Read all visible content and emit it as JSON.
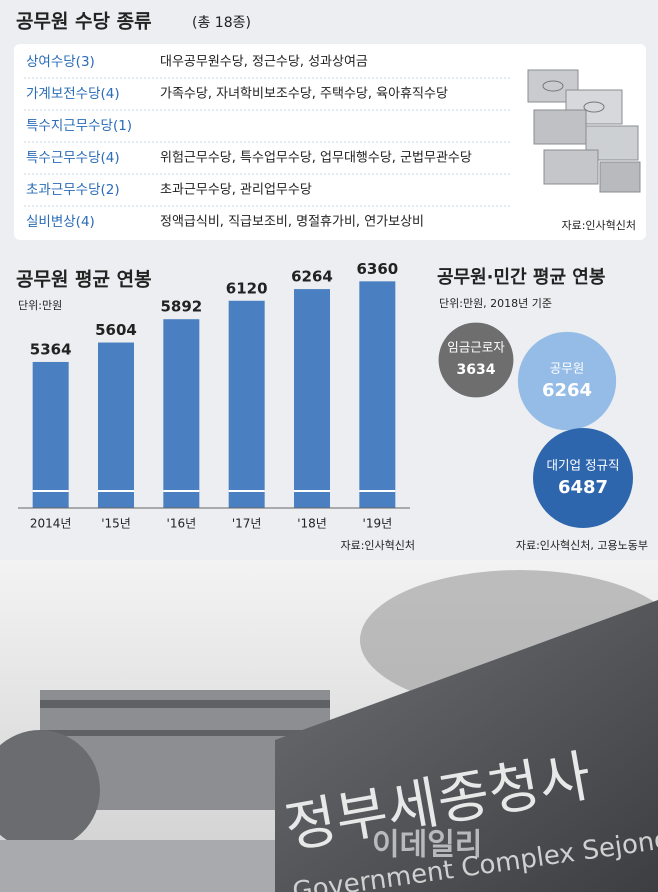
{
  "table": {
    "title": "공무원 수당 종류",
    "subtitle": "(총 18종)",
    "rows": [
      {
        "name": "상여수당(3)",
        "items": "대우공무원수당, 정근수당, 성과상여금"
      },
      {
        "name": "가계보전수당(4)",
        "items": "가족수당, 자녀학비보조수당, 주택수당, 육아휴직수당"
      },
      {
        "name": "특수지근무수당(1)"
      },
      {
        "name": "특수근무수당(4)",
        "items": "위험근무수당, 특수업무수당, 업무대행수당, 군법무관수당"
      },
      {
        "name": "초과근무수당(2)",
        "items": "초과근무수당, 관리업무수당"
      },
      {
        "name": "실비변상(4)",
        "items": "정액급식비, 직급보조비, 명절휴가비, 연가보상비"
      }
    ],
    "source": "자료:인사혁신처"
  },
  "chart_data": [
    {
      "type": "bar",
      "title": "공무원 평균 연봉",
      "subtitle": "단위:만원",
      "categories": [
        "2014년",
        "'15년",
        "'16년",
        "'17년",
        "'18년",
        "'19년"
      ],
      "values": [
        5364,
        5604,
        5892,
        6120,
        6264,
        6360
      ],
      "color": "#4a7fc1",
      "ylim": [
        3560,
        6500
      ],
      "source": "자료:인사혁신처"
    },
    {
      "type": "bubble",
      "title": "공무원·민간 평균 연봉",
      "subtitle": "단위:만원, 2018년 기준",
      "categories": [
        "임금근로자",
        "공무원",
        "대기업 정규직"
      ],
      "values": [
        3634,
        6264,
        6487
      ],
      "colors": [
        "#6e6e6e",
        "#8fb8e6",
        "#2e66ae"
      ],
      "source": "자료:인사혁신처, 고용노동부"
    }
  ],
  "photo": {
    "sign": "정부세종청사",
    "sign_english": "Government Complex Sejong",
    "watermark": "이데일리"
  }
}
